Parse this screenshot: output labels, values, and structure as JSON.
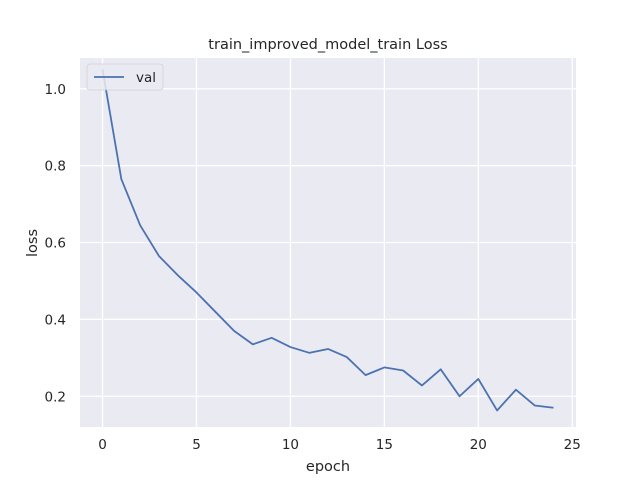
{
  "chart_data": {
    "type": "line",
    "title": "train_improved_model_train Loss",
    "xlabel": "epoch",
    "ylabel": "loss",
    "xlim": [
      -1.2,
      25.2
    ],
    "ylim": [
      0.12,
      1.08
    ],
    "xticks": [
      0,
      5,
      10,
      15,
      20,
      25
    ],
    "xtick_labels": [
      "0",
      "5",
      "10",
      "15",
      "20",
      "25"
    ],
    "yticks": [
      0.2,
      0.4,
      0.6,
      0.8,
      1.0
    ],
    "ytick_labels": [
      "0.2",
      "0.4",
      "0.6",
      "0.8",
      "1.0"
    ],
    "grid": true,
    "legend_position": "upper-left",
    "background_color": "#eaeaf2",
    "grid_color": "#ffffff",
    "series": [
      {
        "name": "val",
        "color": "#4c72b0",
        "x": [
          0,
          1,
          2,
          3,
          4,
          5,
          6,
          7,
          8,
          9,
          10,
          11,
          12,
          13,
          14,
          15,
          16,
          17,
          18,
          19,
          20,
          21,
          22,
          23,
          24
        ],
        "y": [
          1.05,
          0.765,
          0.645,
          0.565,
          0.515,
          0.47,
          0.42,
          0.37,
          0.335,
          0.352,
          0.328,
          0.313,
          0.323,
          0.302,
          0.255,
          0.275,
          0.267,
          0.228,
          0.27,
          0.2,
          0.245,
          0.163,
          0.217,
          0.176,
          0.17
        ]
      }
    ]
  }
}
